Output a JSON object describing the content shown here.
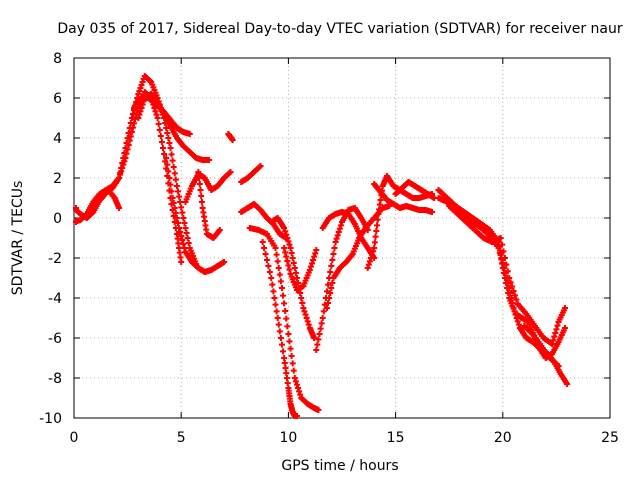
{
  "chart_data": {
    "type": "scatter",
    "title": "Day 035 of 2017, Sidereal Day-to-day VTEC variation (SDTVAR) for receiver naur",
    "xlabel": "GPS time / hours",
    "ylabel": "SDTVAR / TECUs",
    "xlim": [
      0,
      25
    ],
    "ylim": [
      -10,
      8
    ],
    "x_ticks": [
      "0",
      "5",
      "10",
      "15",
      "20",
      "25"
    ],
    "y_ticks": [
      "-10",
      "-8",
      "-6",
      "-4",
      "-2",
      "0",
      "2",
      "4",
      "6",
      "8"
    ],
    "grid": true,
    "marker": "+",
    "colors": {
      "series": "#ff0000",
      "grid": "#b0b0b0",
      "axis": "#000000"
    },
    "series": [
      {
        "x": [
          0.0,
          0.3,
          0.6,
          0.9,
          1.2,
          1.5,
          1.8,
          2.1,
          2.4,
          2.7,
          3.0,
          3.3,
          3.6,
          3.9,
          4.2,
          4.5,
          4.8,
          5.0
        ],
        "values": [
          -0.2,
          -0.1,
          0.2,
          0.8,
          1.2,
          1.4,
          1.6,
          2.0,
          3.0,
          4.3,
          5.6,
          6.3,
          6.0,
          5.0,
          3.2,
          1.0,
          -0.8,
          -2.2
        ]
      },
      {
        "x": [
          0.0,
          0.3,
          0.6,
          0.9,
          1.2,
          1.5,
          1.8,
          2.1,
          2.4,
          2.7,
          3.0,
          3.3,
          3.6,
          3.9,
          4.2,
          4.5,
          4.8,
          5.1,
          5.4,
          5.7
        ],
        "values": [
          0.5,
          0.2,
          0.0,
          0.3,
          0.9,
          1.3,
          1.5,
          2.0,
          3.5,
          5.0,
          6.2,
          7.1,
          6.8,
          6.0,
          5.0,
          3.5,
          1.6,
          0.0,
          -1.5,
          -2.3
        ]
      },
      {
        "x": [
          1.0,
          1.3,
          1.6,
          1.9,
          2.1
        ],
        "values": [
          0.7,
          1.0,
          1.4,
          1.0,
          0.5
        ]
      },
      {
        "x": [
          2.8,
          3.0,
          3.3,
          3.6,
          3.9,
          4.2,
          4.5,
          4.8,
          5.1,
          5.4
        ],
        "values": [
          5.5,
          5.9,
          6.1,
          5.9,
          5.6,
          5.3,
          4.9,
          4.5,
          4.3,
          4.2
        ]
      },
      {
        "x": [
          3.0,
          3.3,
          3.6,
          3.9,
          4.2,
          4.5,
          4.8,
          5.1,
          5.4,
          5.7,
          6.0,
          6.3
        ],
        "values": [
          5.0,
          6.0,
          6.2,
          5.8,
          5.2,
          4.6,
          4.0,
          3.6,
          3.3,
          3.0,
          2.9,
          2.9
        ]
      },
      {
        "x": [
          4.3,
          4.6,
          4.9,
          5.2,
          5.5,
          5.8,
          6.1,
          6.4,
          6.7,
          7.0
        ],
        "values": [
          3.0,
          1.0,
          -0.5,
          -1.7,
          -2.2,
          -2.5,
          -2.7,
          -2.6,
          -2.4,
          -2.2
        ]
      },
      {
        "x": [
          5.2,
          5.5,
          5.8,
          6.1,
          6.4,
          6.7,
          7.0,
          7.3
        ],
        "values": [
          0.8,
          1.6,
          2.2,
          2.0,
          1.4,
          1.6,
          2.0,
          2.3
        ]
      },
      {
        "x": [
          5.8,
          6.0,
          6.2,
          6.5,
          6.8
        ],
        "values": [
          2.3,
          0.5,
          -0.8,
          -1.0,
          -0.6
        ]
      },
      {
        "x": [
          7.2,
          7.4
        ],
        "values": [
          4.2,
          3.9
        ]
      },
      {
        "x": [
          7.8,
          8.1,
          8.4,
          8.7
        ],
        "values": [
          1.8,
          2.0,
          2.3,
          2.6
        ]
      },
      {
        "x": [
          7.8,
          8.1,
          8.4,
          8.7,
          9.0,
          9.3,
          9.6,
          9.9
        ],
        "values": [
          0.3,
          0.5,
          0.7,
          0.4,
          0.0,
          -0.3,
          -0.8,
          -1.0
        ]
      },
      {
        "x": [
          8.2,
          8.6,
          9.0,
          9.4,
          9.7,
          10.0,
          10.3,
          10.6,
          10.9,
          11.2,
          11.4
        ],
        "values": [
          -0.5,
          -0.6,
          -0.8,
          -1.5,
          -3.5,
          -5.8,
          -8.0,
          -9.0,
          -9.3,
          -9.5,
          -9.6
        ]
      },
      {
        "x": [
          8.8,
          9.2,
          9.5,
          9.8,
          10.0,
          10.1,
          10.2,
          10.3,
          10.4
        ],
        "values": [
          -1.2,
          -3.0,
          -5.0,
          -7.0,
          -8.5,
          -9.3,
          -9.7,
          -9.9,
          -10.0
        ]
      },
      {
        "x": [
          9.2,
          9.5,
          9.8,
          10.1,
          10.4,
          10.7,
          11.0,
          11.2
        ],
        "values": [
          -0.2,
          0.0,
          -0.5,
          -1.5,
          -3.0,
          -4.5,
          -5.5,
          -6.0
        ]
      },
      {
        "x": [
          9.8,
          10.1,
          10.4,
          10.7,
          11.0,
          11.3
        ],
        "values": [
          -1.5,
          -2.8,
          -3.6,
          -3.4,
          -2.6,
          -1.6
        ]
      },
      {
        "x": [
          11.3,
          11.6,
          11.9,
          12.2,
          12.5,
          12.8,
          13.1,
          13.4,
          13.7
        ],
        "values": [
          -6.6,
          -5.0,
          -3.0,
          -1.2,
          -0.2,
          0.4,
          0.5,
          0.0,
          -0.6
        ]
      },
      {
        "x": [
          11.8,
          12.1,
          12.4,
          12.7,
          13.0,
          13.3,
          13.6,
          14.0,
          14.4,
          14.7
        ],
        "values": [
          -4.5,
          -3.0,
          -2.5,
          -2.2,
          -1.8,
          -1.0,
          -0.5,
          0.0,
          0.5,
          0.6
        ]
      },
      {
        "x": [
          11.6,
          11.9,
          12.2,
          12.5,
          12.8,
          13.1,
          13.4,
          13.7,
          14.0
        ],
        "values": [
          -0.5,
          0.0,
          0.2,
          0.3,
          0.2,
          -0.3,
          -1.0,
          -1.5,
          -2.0
        ]
      },
      {
        "x": [
          13.7,
          14.0,
          14.2,
          14.4,
          14.6,
          14.9,
          15.2,
          15.5,
          15.8,
          16.1,
          16.4,
          16.7
        ],
        "values": [
          -2.5,
          -1.5,
          0.2,
          1.6,
          2.1,
          1.6,
          1.4,
          1.2,
          1.0,
          1.0,
          1.1,
          1.2
        ]
      },
      {
        "x": [
          14.0,
          14.3,
          14.6,
          14.9,
          15.2,
          15.5,
          15.8,
          16.1,
          16.4,
          16.7
        ],
        "values": [
          1.7,
          1.3,
          0.9,
          0.7,
          0.5,
          0.6,
          0.5,
          0.4,
          0.4,
          0.3
        ]
      },
      {
        "x": [
          15.0,
          15.3,
          15.6,
          15.9,
          16.2,
          16.5,
          16.8
        ],
        "values": [
          1.2,
          1.5,
          1.8,
          1.6,
          1.4,
          1.2,
          1.0
        ]
      },
      {
        "x": [
          17.0,
          17.4,
          17.8,
          18.2,
          18.6,
          19.0,
          19.4,
          19.8,
          20.0,
          20.3,
          20.6,
          20.9,
          21.2,
          21.5,
          21.8,
          22.1,
          22.4,
          22.7,
          23.0
        ],
        "values": [
          1.4,
          1.0,
          0.6,
          0.3,
          0.0,
          -0.3,
          -0.6,
          -1.2,
          -2.5,
          -4.0,
          -4.8,
          -5.0,
          -5.2,
          -6.0,
          -6.5,
          -6.8,
          -7.2,
          -7.8,
          -8.3
        ]
      },
      {
        "x": [
          17.0,
          17.4,
          17.8,
          18.2,
          18.6,
          19.0,
          19.4,
          19.8,
          20.2,
          20.5,
          20.8,
          21.1,
          21.4,
          21.7,
          22.0,
          22.3,
          22.6,
          22.9
        ],
        "values": [
          1.0,
          0.8,
          0.5,
          0.2,
          -0.2,
          -0.5,
          -0.9,
          -1.5,
          -3.0,
          -4.5,
          -5.5,
          -6.0,
          -6.2,
          -6.5,
          -7.0,
          -6.8,
          -6.2,
          -5.5
        ]
      },
      {
        "x": [
          17.5,
          17.9,
          18.3,
          18.7,
          19.1,
          19.5,
          19.9,
          20.3,
          20.7,
          21.1,
          21.5,
          21.9,
          22.3,
          22.6,
          22.9
        ],
        "values": [
          0.6,
          0.2,
          -0.2,
          -0.6,
          -1.0,
          -1.2,
          -1.0,
          -3.0,
          -4.3,
          -4.8,
          -5.4,
          -6.0,
          -6.3,
          -5.2,
          -4.5
        ]
      },
      {
        "x": [
          21.0,
          21.4,
          21.8,
          22.2,
          22.6
        ],
        "values": [
          -5.4,
          -5.8,
          -6.4,
          -7.0,
          -7.4
        ]
      }
    ]
  }
}
